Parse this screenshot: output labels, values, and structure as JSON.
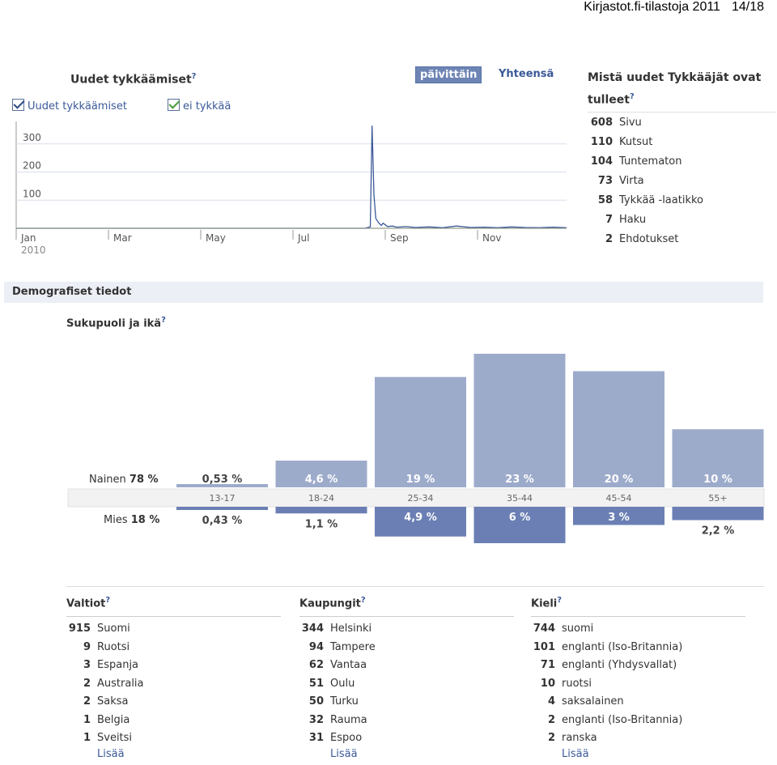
{
  "header": {
    "title": "Kirjastot.fi-tilastoja 2011",
    "page": "14/18"
  },
  "likes": {
    "title": "Uudet tykkäämiset",
    "help": "?",
    "legend": {
      "likes": "Uudet tykkäämiset",
      "unlikes": "ei tykkää"
    },
    "toggle": {
      "daily": "päivittäin",
      "total": "Yhteensä"
    },
    "colors": {
      "likes": "#3b5998",
      "unlikes": "#6aa84f",
      "axis": "#666666",
      "grid": "#d8dfea"
    }
  },
  "sources": {
    "title": "Mistä uudet Tykkääjät ovat tulleet",
    "help": "?",
    "items": [
      {
        "num": "608",
        "label": "Sivu"
      },
      {
        "num": "110",
        "label": "Kutsut"
      },
      {
        "num": "104",
        "label": "Tuntematon"
      },
      {
        "num": "73",
        "label": "Virta"
      },
      {
        "num": "58",
        "label": "Tykkää -laatikko"
      },
      {
        "num": "7",
        "label": "Haku"
      },
      {
        "num": "2",
        "label": "Ehdotukset"
      }
    ]
  },
  "demographics": {
    "title": "Demografiset tiedot",
    "subtitle": "Sukupuoli ja ikä",
    "help": "?",
    "female_label": "Nainen",
    "female_total": "78 %",
    "male_label": "Mies",
    "male_total": "18 %"
  },
  "chart_data": [
    {
      "type": "line",
      "title": "Uudet tykkäämiset",
      "x_ticks": [
        "Jan\n2010",
        "Mar",
        "May",
        "Jul",
        "Sep",
        "Nov"
      ],
      "y_ticks": [
        100,
        200,
        300
      ],
      "ylim": [
        0,
        380
      ],
      "series": [
        {
          "name": "Uudet tykkäämiset",
          "color": "#3b5998",
          "x_months": [
            0,
            7.6,
            7.72,
            7.76,
            7.8,
            7.84,
            7.9,
            7.96,
            8.0,
            8.1,
            8.2,
            8.3,
            8.5,
            8.7,
            9.0,
            9.3,
            9.6,
            9.9,
            10.2,
            10.5,
            10.8,
            11.1,
            11.4,
            11.7,
            12.0
          ],
          "values": [
            0,
            0,
            5,
            365,
            120,
            35,
            20,
            10,
            18,
            6,
            8,
            4,
            6,
            3,
            5,
            2,
            8,
            3,
            4,
            2,
            5,
            3,
            2,
            4,
            2
          ]
        },
        {
          "name": "ei tykkää",
          "color": "#6aa84f",
          "x_months": [
            0,
            12.0
          ],
          "values": [
            0,
            0
          ]
        }
      ]
    },
    {
      "type": "bar",
      "title": "Sukupuoli ja ikä",
      "categories": [
        "13-17",
        "18-24",
        "25-34",
        "35-44",
        "45-54",
        "55+"
      ],
      "series": [
        {
          "name": "Nainen",
          "color": "#9dabcb",
          "values": [
            0.53,
            4.6,
            19,
            23,
            20,
            10
          ],
          "labels": [
            "0,53 %",
            "4,6 %",
            "19 %",
            "23 %",
            "20 %",
            "10 %"
          ]
        },
        {
          "name": "Mies",
          "color": "#6b7fb4",
          "values": [
            0.43,
            1.1,
            4.9,
            6,
            3,
            2.2
          ],
          "labels": [
            "0,43 %",
            "1,1 %",
            "4,9 %",
            "6 %",
            "3 %",
            "2,2 %"
          ]
        }
      ]
    }
  ],
  "lists": {
    "more": "Lisää",
    "countries": {
      "title": "Valtiot",
      "items": [
        {
          "num": "915",
          "label": "Suomi"
        },
        {
          "num": "9",
          "label": "Ruotsi"
        },
        {
          "num": "3",
          "label": "Espanja"
        },
        {
          "num": "2",
          "label": "Australia"
        },
        {
          "num": "2",
          "label": "Saksa"
        },
        {
          "num": "1",
          "label": "Belgia"
        },
        {
          "num": "1",
          "label": "Sveitsi"
        }
      ]
    },
    "cities": {
      "title": "Kaupungit",
      "items": [
        {
          "num": "344",
          "label": "Helsinki"
        },
        {
          "num": "94",
          "label": "Tampere"
        },
        {
          "num": "62",
          "label": "Vantaa"
        },
        {
          "num": "51",
          "label": "Oulu"
        },
        {
          "num": "50",
          "label": "Turku"
        },
        {
          "num": "32",
          "label": "Rauma"
        },
        {
          "num": "31",
          "label": "Espoo"
        }
      ]
    },
    "languages": {
      "title": "Kieli",
      "items": [
        {
          "num": "744",
          "label": "suomi"
        },
        {
          "num": "101",
          "label": "englanti (Iso-Britannia)"
        },
        {
          "num": "71",
          "label": "englanti (Yhdysvallat)"
        },
        {
          "num": "10",
          "label": "ruotsi"
        },
        {
          "num": "4",
          "label": "saksalainen"
        },
        {
          "num": "2",
          "label": "englanti (Iso-Britannia)"
        },
        {
          "num": "2",
          "label": "ranska"
        }
      ]
    }
  }
}
